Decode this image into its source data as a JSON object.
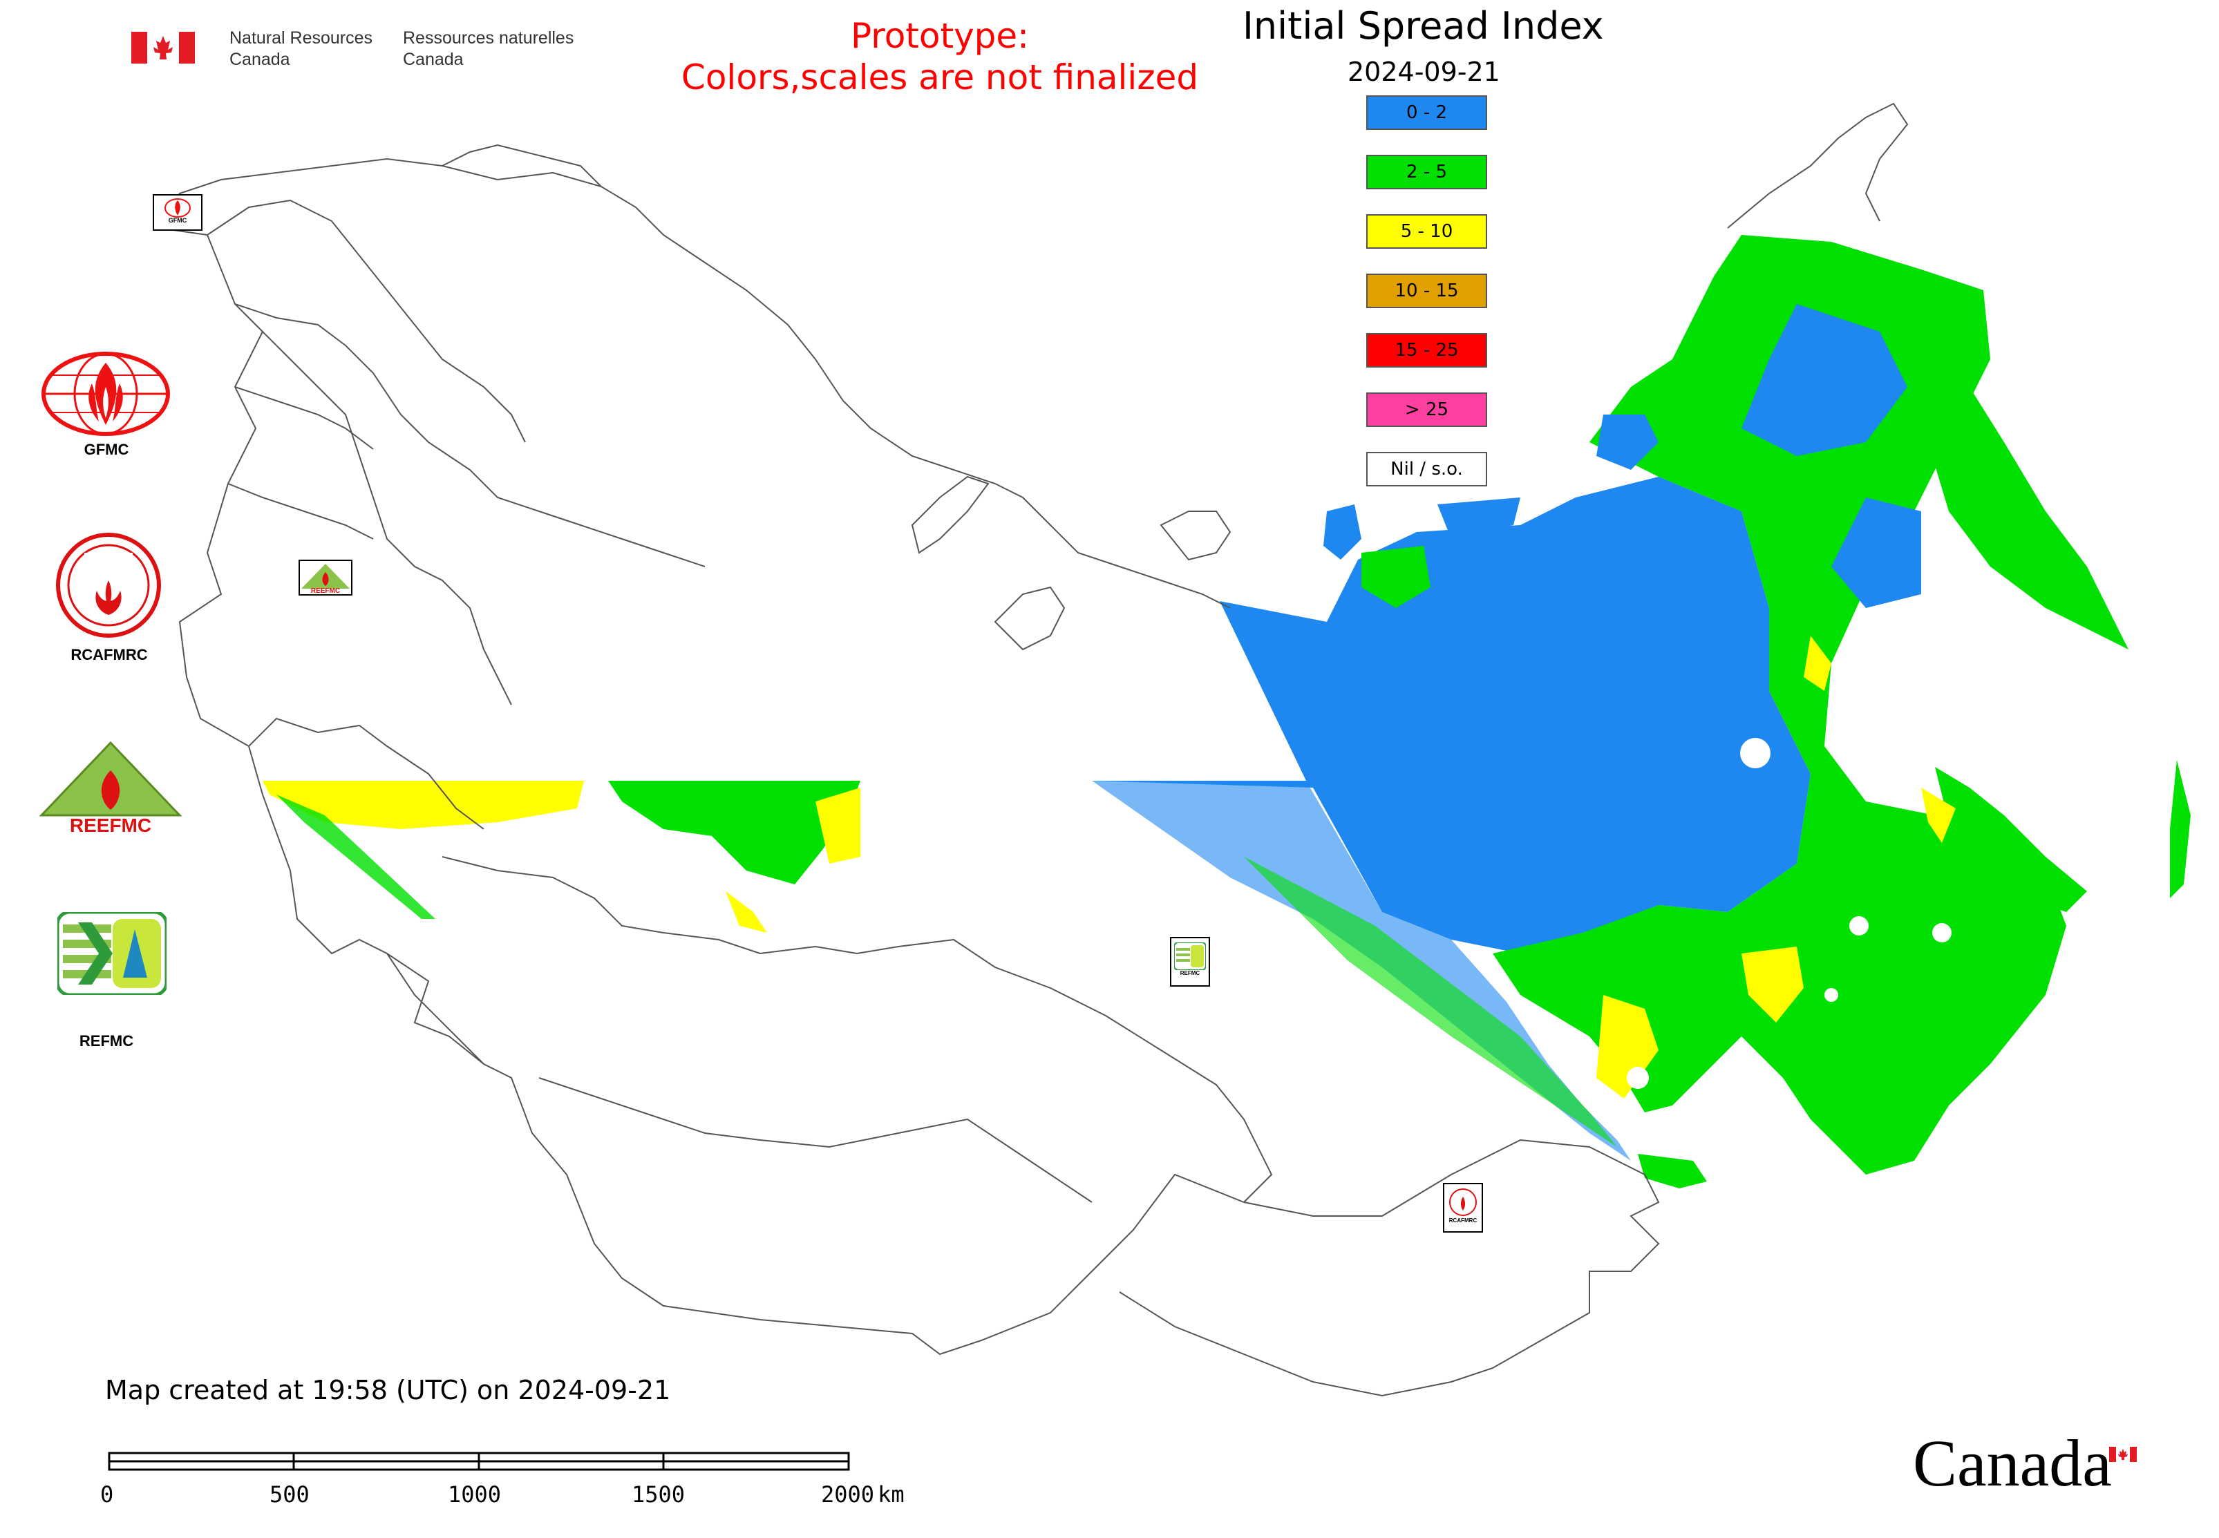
{
  "header": {
    "agency_en": "Natural Resources\nCanada",
    "agency_fr": "Ressources naturelles\nCanada",
    "prototype_line1": "Prototype:",
    "prototype_line2": "Colors,scales are not finalized",
    "title": "Initial Spread Index",
    "date": "2024-09-21"
  },
  "legend": {
    "items": [
      {
        "label": "0 - 2",
        "color": "#1e88f0"
      },
      {
        "label": "2 - 5",
        "color": "#00e000"
      },
      {
        "label": "5 - 10",
        "color": "#ffff00"
      },
      {
        "label": "10 - 15",
        "color": "#e0a000"
      },
      {
        "label": "15 - 25",
        "color": "#ff0000"
      },
      {
        "label": "> 25",
        "color": "#ff40a0"
      },
      {
        "label": "Nil / s.o.",
        "color": "#ffffff"
      }
    ]
  },
  "orgs": {
    "gfmc": "GFMC",
    "rcafmrc": "RCAFMRC",
    "reefmc": "REEFMC",
    "refmc": "REFMC"
  },
  "marker_labels": {
    "gfmc": "GFMC",
    "reefmc": "REEFMC",
    "refmc": "REFMC",
    "rcafmrc": "RCAFMRC"
  },
  "footer": {
    "created": "Map created at 19:58 (UTC) on 2024-09-21",
    "scale_ticks": [
      "0",
      "500",
      "1000",
      "1500",
      "2000"
    ],
    "scale_unit": "km",
    "wordmark": "Canada"
  }
}
